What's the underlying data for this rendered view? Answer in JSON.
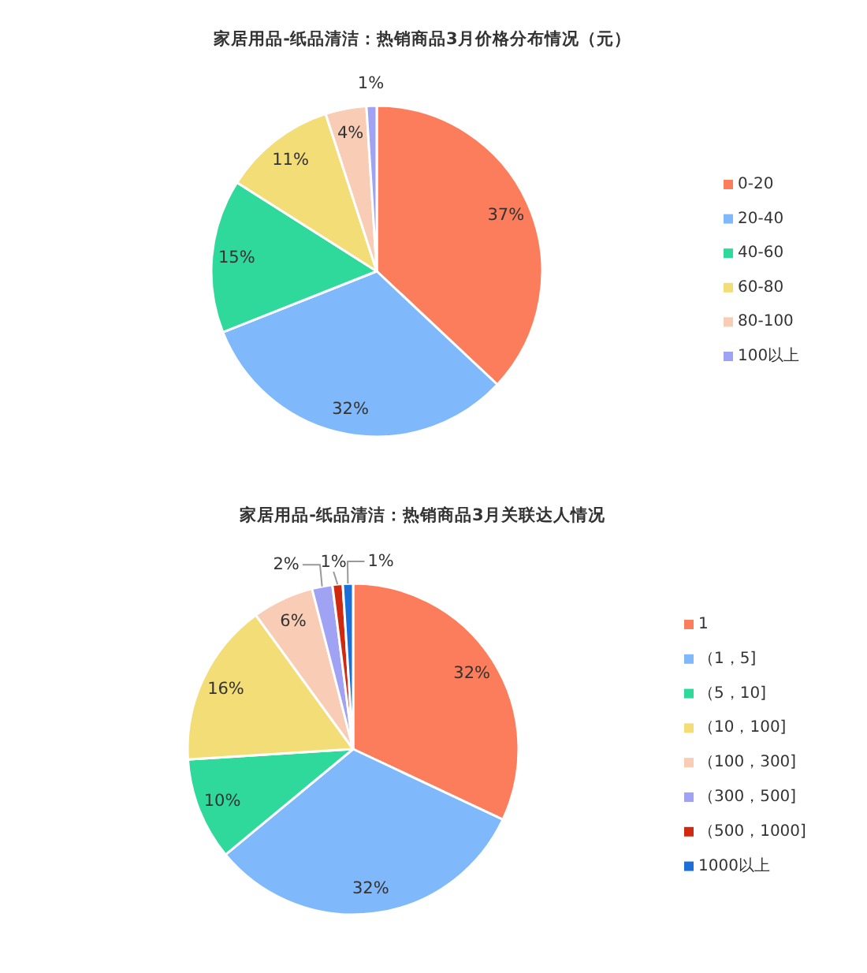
{
  "chart_data": [
    {
      "type": "pie",
      "title": "家居用品-纸品清洁：热销商品3月价格分布情况（元）",
      "categories": [
        "0-20",
        "20-40",
        "40-60",
        "60-80",
        "80-100",
        "100以上"
      ],
      "values": [
        37,
        32,
        15,
        11,
        4,
        1
      ],
      "value_labels": [
        "37%",
        "32%",
        "15%",
        "11%",
        "4%",
        "1%"
      ],
      "colors": [
        "#fc7d5c",
        "#7fb9fb",
        "#2fd99b",
        "#f3dd76",
        "#f8ccb5",
        "#a0a2f4"
      ],
      "legend": "right"
    },
    {
      "type": "pie",
      "title": "家居用品-纸品清洁：热销商品3月关联达人情况",
      "categories": [
        "1",
        "（1，5]",
        "（5，10]",
        "（10，100]",
        "（100，300]",
        "（300，500]",
        "（500，1000]",
        "1000以上"
      ],
      "values": [
        32,
        32,
        10,
        16,
        6,
        2,
        1,
        1
      ],
      "value_labels": [
        "32%",
        "32%",
        "10%",
        "16%",
        "6%",
        "2%",
        "1%",
        "1%"
      ],
      "colors": [
        "#fc7d5c",
        "#7fb9fb",
        "#2fd99b",
        "#f3dd76",
        "#f8ccb5",
        "#a0a2f4",
        "#d0290f",
        "#1b6fd8"
      ],
      "legend": "right"
    }
  ]
}
